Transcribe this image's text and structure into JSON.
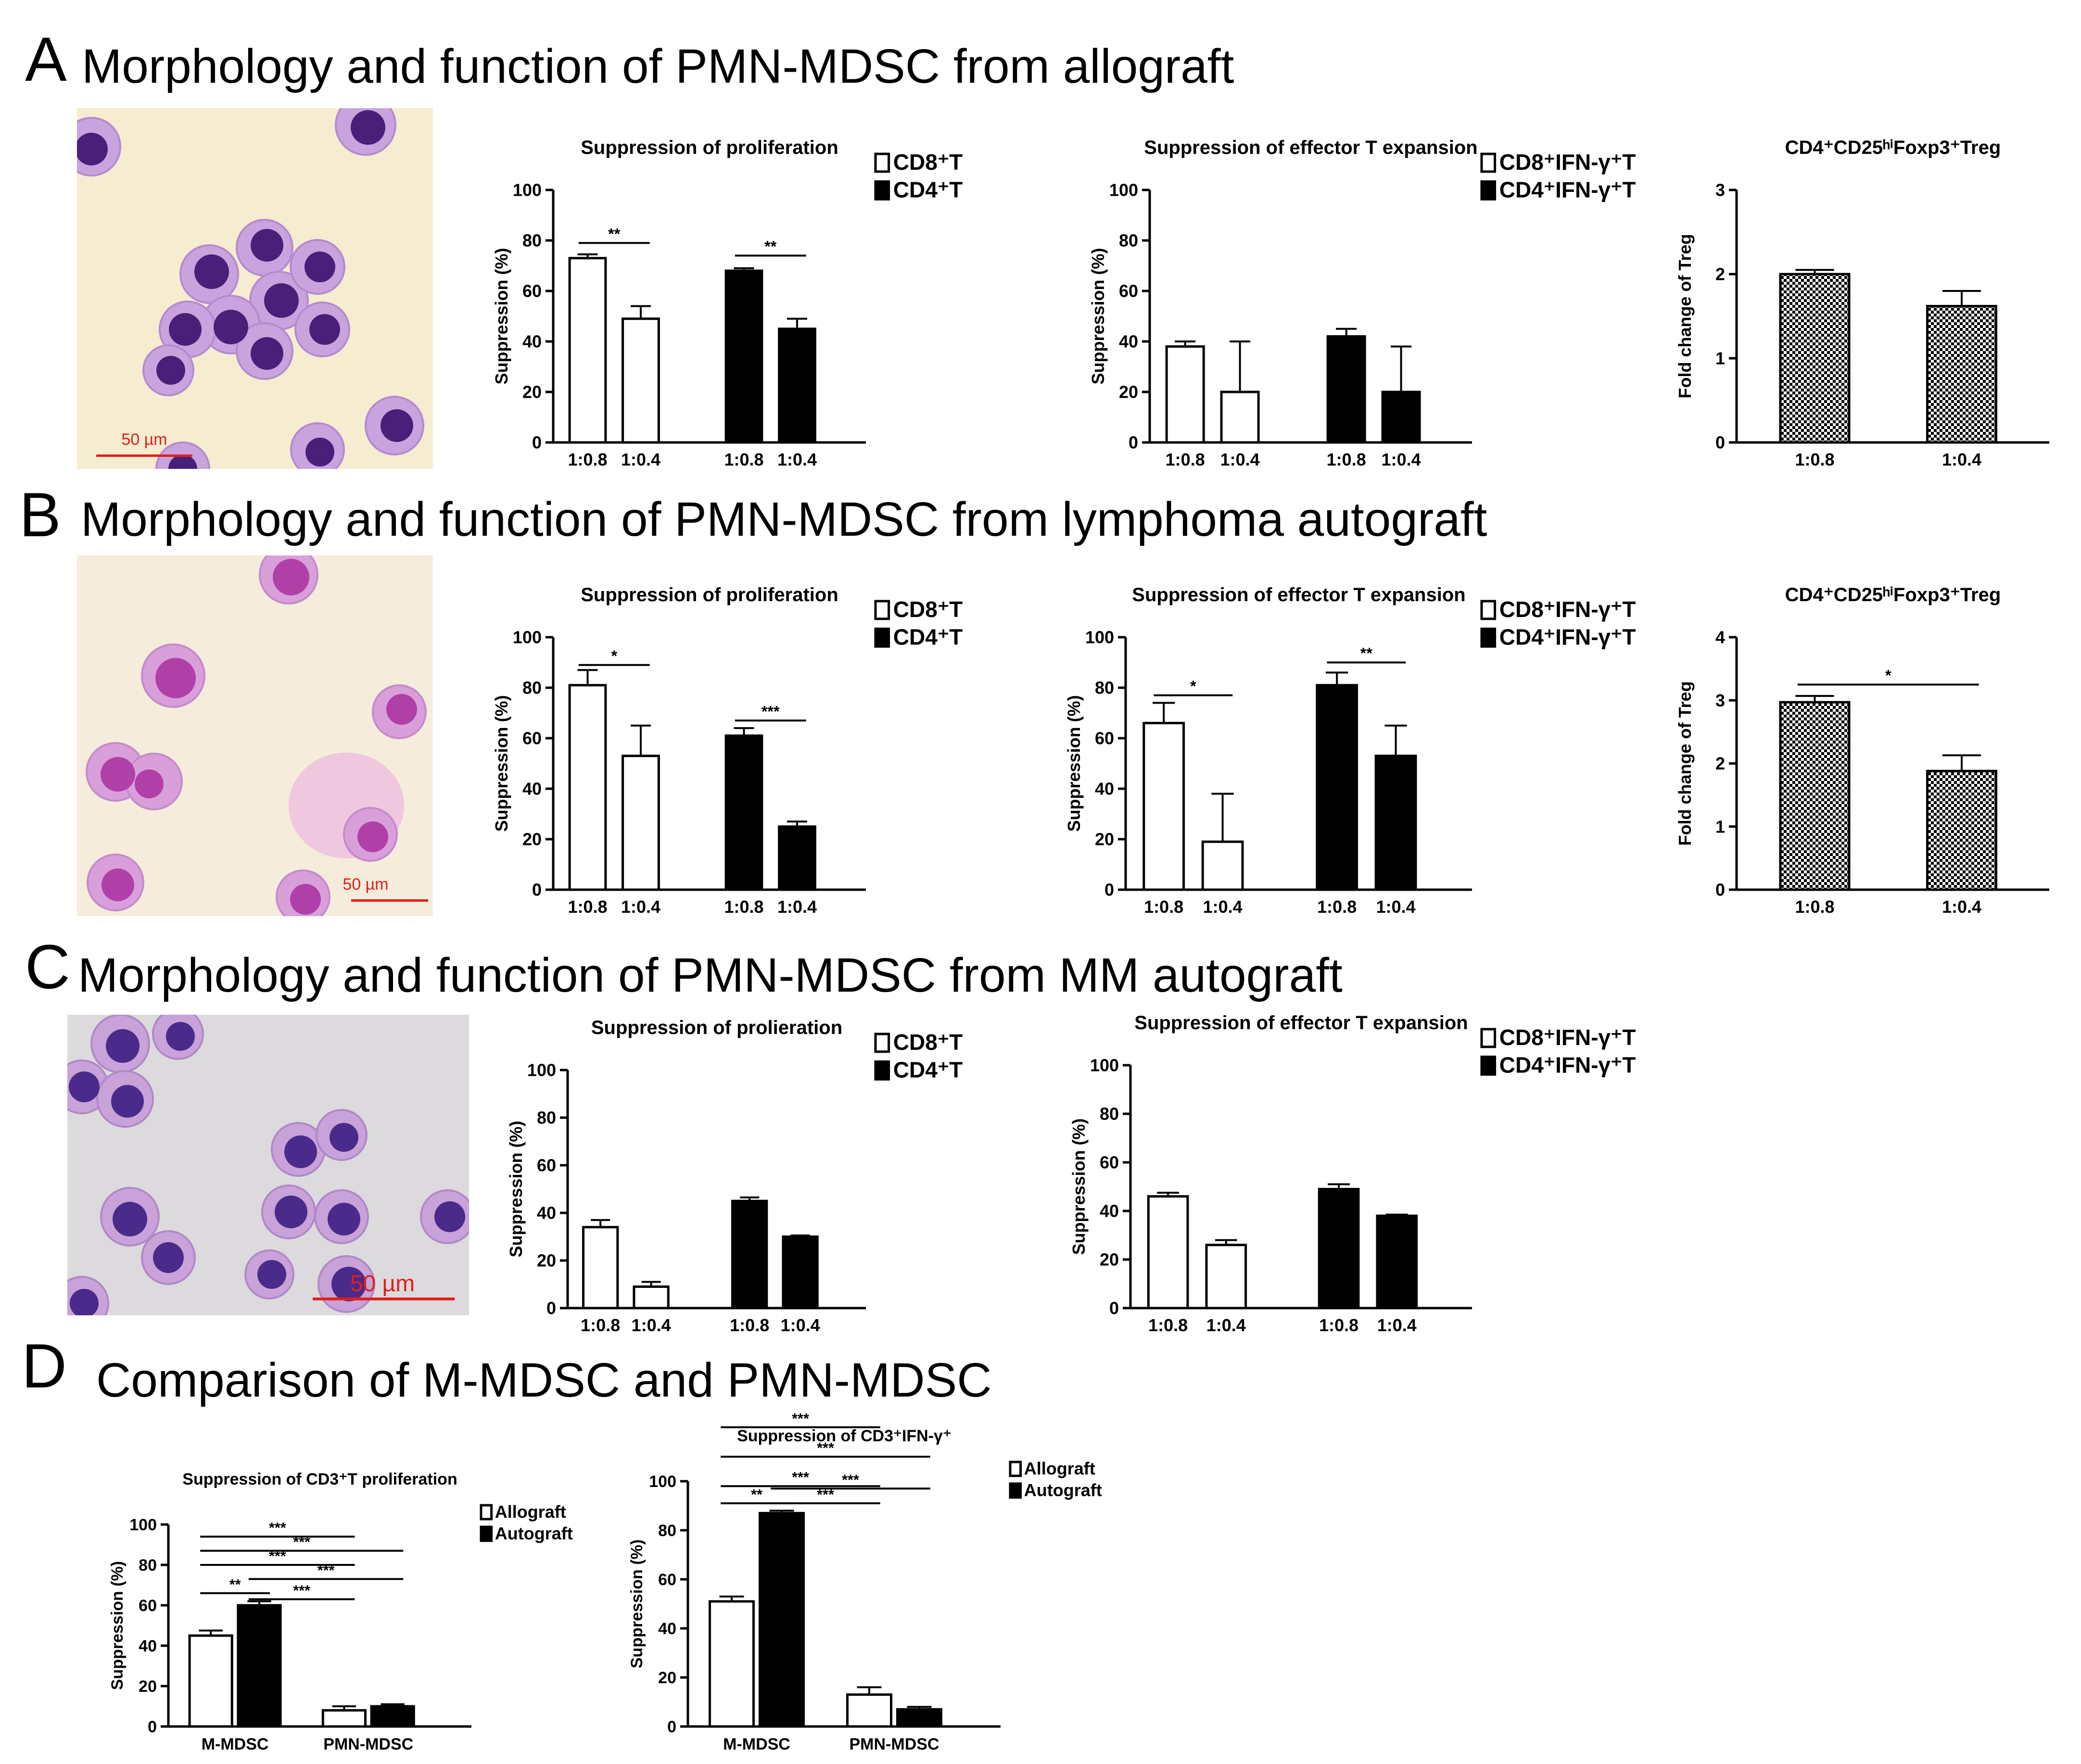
{
  "panels": [
    {
      "letter": "A",
      "title": "Morphology and function of PMN-MDSC from allograft",
      "scale_bar": "50 µm"
    },
    {
      "letter": "B",
      "title": "Morphology and function of PMN-MDSC from lymphoma autograft",
      "scale_bar": "50 µm"
    },
    {
      "letter": "C",
      "title": "Morphology and function of PMN-MDSC from MM autograft",
      "scale_bar": "50 µm"
    },
    {
      "letter": "D",
      "title": "Comparison of M-MDSC and PMN-MDSC"
    }
  ],
  "colors": {
    "filled": "#000000",
    "open": "#ffffff",
    "stroke": "#000000",
    "scale_bar_color": "#e0201c",
    "cell_dark": "#4a1f7a",
    "cell_mid": "#7b48b0",
    "cell_light": "#c9a3dd"
  },
  "chart_data": [
    {
      "id": "A1",
      "type": "bar",
      "title": "Suppression of proliferation",
      "ylabel": "Suppression (%)",
      "xlabel": "",
      "ylim": [
        0,
        100
      ],
      "yticks": [
        "0",
        "20",
        "40",
        "60",
        "80",
        "100"
      ],
      "bars": [
        {
          "label": "1:0.8",
          "value": 73,
          "err": 1.5,
          "fill": "open"
        },
        {
          "label": "1:0.4",
          "value": 49,
          "err": 5,
          "fill": "open"
        },
        {
          "label": "1:0.8",
          "value": 68,
          "err": 1,
          "fill": "filled"
        },
        {
          "label": "1:0.4",
          "value": 45,
          "err": 4,
          "fill": "filled"
        }
      ],
      "legend": [
        {
          "label": "CD8⁺T",
          "fill": "open"
        },
        {
          "label": "CD4⁺T",
          "fill": "filled"
        }
      ],
      "sig": [
        {
          "from": 0,
          "to": 1,
          "y": 79,
          "label": "**"
        },
        {
          "from": 2,
          "to": 3,
          "y": 74,
          "label": "**"
        }
      ]
    },
    {
      "id": "A2",
      "type": "bar",
      "title": "Suppression of effector T expansion",
      "ylabel": "Suppression (%)",
      "xlabel": "",
      "ylim": [
        0,
        100
      ],
      "yticks": [
        "0",
        "20",
        "40",
        "60",
        "80",
        "100"
      ],
      "bars": [
        {
          "label": "1:0.8",
          "value": 38,
          "err": 2,
          "fill": "open"
        },
        {
          "label": "1:0.4",
          "value": 20,
          "err": 20,
          "fill": "open"
        },
        {
          "label": "1:0.8",
          "value": 42,
          "err": 3,
          "fill": "filled"
        },
        {
          "label": "1:0.4",
          "value": 20,
          "err": 18,
          "fill": "filled"
        }
      ],
      "legend": [
        {
          "label": "CD8⁺IFN-γ⁺T",
          "fill": "open"
        },
        {
          "label": "CD4⁺IFN-γ⁺T",
          "fill": "filled"
        }
      ],
      "sig": []
    },
    {
      "id": "A3",
      "type": "bar",
      "title": "CD4⁺CD25ʰⁱFoxp3⁺Treg",
      "ylabel": "Fold change of Treg",
      "xlabel": "",
      "ylim": [
        0,
        3
      ],
      "yticks": [
        "0",
        "1",
        "2",
        "3"
      ],
      "bars": [
        {
          "label": "1:0.8",
          "value": 2.0,
          "err": 0.05,
          "fill": "hatch"
        },
        {
          "label": "1:0.4",
          "value": 1.62,
          "err": 0.18,
          "fill": "hatch"
        }
      ],
      "legend": [],
      "sig": []
    },
    {
      "id": "B1",
      "type": "bar",
      "title": "Suppression of proliferation",
      "ylabel": "Suppression (%)",
      "xlabel": "",
      "ylim": [
        0,
        100
      ],
      "yticks": [
        "0",
        "20",
        "40",
        "60",
        "80",
        "100"
      ],
      "bars": [
        {
          "label": "1:0.8",
          "value": 81,
          "err": 6,
          "fill": "open"
        },
        {
          "label": "1:0.4",
          "value": 53,
          "err": 12,
          "fill": "open"
        },
        {
          "label": "1:0.8",
          "value": 61,
          "err": 3,
          "fill": "filled"
        },
        {
          "label": "1:0.4",
          "value": 25,
          "err": 2,
          "fill": "filled"
        }
      ],
      "legend": [
        {
          "label": "CD8⁺T",
          "fill": "open"
        },
        {
          "label": "CD4⁺T",
          "fill": "filled"
        }
      ],
      "sig": [
        {
          "from": 0,
          "to": 1,
          "y": 89,
          "label": "*"
        },
        {
          "from": 2,
          "to": 3,
          "y": 67,
          "label": "***"
        }
      ]
    },
    {
      "id": "B2",
      "type": "bar",
      "title": "Suppression of effector T expansion",
      "ylabel": "Suppression (%)",
      "xlabel": "",
      "ylim": [
        0,
        100
      ],
      "yticks": [
        "0",
        "20",
        "40",
        "60",
        "80",
        "100"
      ],
      "bars": [
        {
          "label": "1:0.8",
          "value": 66,
          "err": 8,
          "fill": "open"
        },
        {
          "label": "1:0.4",
          "value": 19,
          "err": 19,
          "fill": "open"
        },
        {
          "label": "1:0.8",
          "value": 81,
          "err": 5,
          "fill": "filled"
        },
        {
          "label": "1:0.4",
          "value": 53,
          "err": 12,
          "fill": "filled"
        }
      ],
      "legend": [
        {
          "label": "CD8⁺IFN-γ⁺T",
          "fill": "open"
        },
        {
          "label": "CD4⁺IFN-γ⁺T",
          "fill": "filled"
        }
      ],
      "sig": [
        {
          "from": 0,
          "to": 1,
          "y": 77,
          "label": "*"
        },
        {
          "from": 2,
          "to": 3,
          "y": 90,
          "label": "**"
        }
      ]
    },
    {
      "id": "B3",
      "type": "bar",
      "title": "CD4⁺CD25ʰⁱFoxp3⁺Treg",
      "ylabel": "Fold change of Treg",
      "xlabel": "",
      "ylim": [
        0,
        4
      ],
      "yticks": [
        "0",
        "1",
        "2",
        "3",
        "4"
      ],
      "bars": [
        {
          "label": "1:0.8",
          "value": 2.97,
          "err": 0.1,
          "fill": "hatch"
        },
        {
          "label": "1:0.4",
          "value": 1.88,
          "err": 0.25,
          "fill": "hatch"
        }
      ],
      "legend": [],
      "sig": [
        {
          "from": 0,
          "to": 1,
          "y": 3.25,
          "label": "*"
        }
      ]
    },
    {
      "id": "C1",
      "type": "bar",
      "title": "Suppression of prolieration",
      "ylabel": "Suppression (%)",
      "xlabel": "",
      "ylim": [
        0,
        100
      ],
      "yticks": [
        "0",
        "20",
        "40",
        "60",
        "80",
        "100"
      ],
      "bars": [
        {
          "label": "1:0.8",
          "value": 34,
          "err": 3,
          "fill": "open"
        },
        {
          "label": "1:0.4",
          "value": 9,
          "err": 2,
          "fill": "open"
        },
        {
          "label": "1:0.8",
          "value": 45,
          "err": 1.5,
          "fill": "filled"
        },
        {
          "label": "1:0.4",
          "value": 30,
          "err": 0.5,
          "fill": "filled"
        }
      ],
      "legend": [
        {
          "label": "CD8⁺T",
          "fill": "open"
        },
        {
          "label": "CD4⁺T",
          "fill": "filled"
        }
      ],
      "sig": []
    },
    {
      "id": "C2",
      "type": "bar",
      "title": "Suppression of effector T expansion",
      "ylabel": "Suppression (%)",
      "xlabel": "",
      "ylim": [
        0,
        100
      ],
      "yticks": [
        "0",
        "20",
        "40",
        "60",
        "80",
        "100"
      ],
      "bars": [
        {
          "label": "1:0.8",
          "value": 46,
          "err": 1.5,
          "fill": "open"
        },
        {
          "label": "1:0.4",
          "value": 26,
          "err": 2,
          "fill": "open"
        },
        {
          "label": "1:0.8",
          "value": 49,
          "err": 2,
          "fill": "filled"
        },
        {
          "label": "1:0.4",
          "value": 38,
          "err": 0.5,
          "fill": "filled"
        }
      ],
      "legend": [
        {
          "label": "CD8⁺IFN-γ⁺T",
          "fill": "open"
        },
        {
          "label": "CD4⁺IFN-γ⁺T",
          "fill": "filled"
        }
      ],
      "sig": []
    },
    {
      "id": "D1",
      "type": "bar",
      "title": "Suppression of CD3⁺T proliferation",
      "ylabel": "Suppression (%)",
      "xlabel": "",
      "ylim": [
        0,
        100
      ],
      "yticks": [
        "0",
        "20",
        "40",
        "60",
        "80",
        "100"
      ],
      "bars": [
        {
          "label": "",
          "value": 45,
          "err": 2.5,
          "fill": "open"
        },
        {
          "label": "",
          "value": 60,
          "err": 2,
          "fill": "filled"
        },
        {
          "label": "",
          "value": 8,
          "err": 2,
          "fill": "open"
        },
        {
          "label": "",
          "value": 10,
          "err": 1,
          "fill": "filled"
        }
      ],
      "groups": [
        {
          "label": "M-MDSC",
          "start": 0,
          "end": 1
        },
        {
          "label": "PMN-MDSC",
          "start": 2,
          "end": 3
        }
      ],
      "legend": [
        {
          "label": "Allograft",
          "fill": "open"
        },
        {
          "label": "Autograft",
          "fill": "filled"
        }
      ],
      "sig": [
        {
          "from": 0,
          "to": 2,
          "y": 94,
          "label": "***"
        },
        {
          "from": 0,
          "to": 3,
          "y": 87,
          "label": "***"
        },
        {
          "from": 0,
          "to": 2,
          "y": 80,
          "label": "***"
        },
        {
          "from": 1,
          "to": 3,
          "y": 73,
          "label": "***"
        },
        {
          "from": 0,
          "to": 1,
          "y": 66,
          "label": "**"
        },
        {
          "from": 1,
          "to": 2,
          "y": 63,
          "label": "***"
        }
      ]
    },
    {
      "id": "D2",
      "type": "bar",
      "title": "Suppression of CD3⁺IFN-γ⁺",
      "ylabel": "Suppression (%)",
      "xlabel": "",
      "ylim": [
        0,
        100
      ],
      "yticks": [
        "0",
        "20",
        "40",
        "60",
        "80",
        "100"
      ],
      "bars": [
        {
          "label": "",
          "value": 51,
          "err": 2,
          "fill": "open"
        },
        {
          "label": "",
          "value": 87,
          "err": 1,
          "fill": "filled"
        },
        {
          "label": "",
          "value": 13,
          "err": 3,
          "fill": "open"
        },
        {
          "label": "",
          "value": 7,
          "err": 1,
          "fill": "filled"
        }
      ],
      "groups": [
        {
          "label": "M-MDSC",
          "start": 0,
          "end": 1
        },
        {
          "label": "PMN-MDSC",
          "start": 2,
          "end": 3
        }
      ],
      "legend": [
        {
          "label": "Allograft",
          "fill": "open"
        },
        {
          "label": "Autograft",
          "fill": "filled"
        }
      ],
      "sig": [
        {
          "from": 0,
          "to": 2,
          "y": 122,
          "label": "***"
        },
        {
          "from": 0,
          "to": 3,
          "y": 110,
          "label": "***"
        },
        {
          "from": 0,
          "to": 2,
          "y": 98,
          "label": "***"
        },
        {
          "from": 1,
          "to": 3,
          "y": 97,
          "label": "***"
        },
        {
          "from": 0,
          "to": 1,
          "y": 91,
          "label": "**"
        },
        {
          "from": 1,
          "to": 2,
          "y": 91,
          "label": "***"
        }
      ]
    }
  ]
}
